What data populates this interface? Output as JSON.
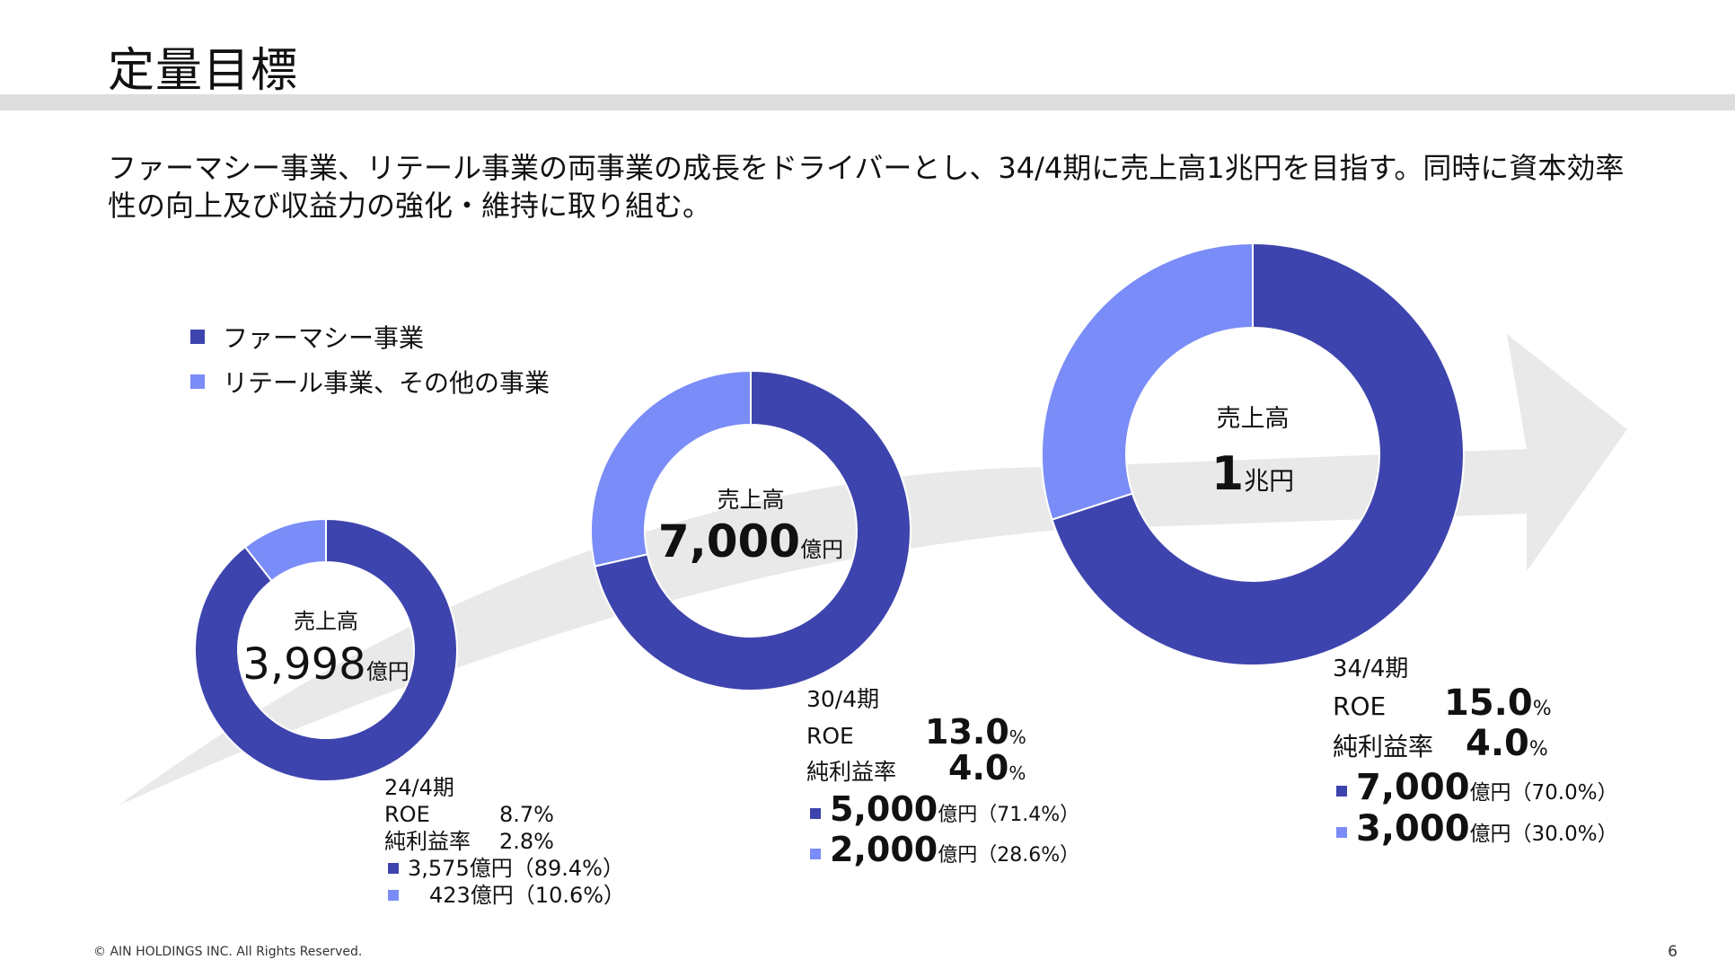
{
  "slide": {
    "title": "定量目標",
    "lead": "ファーマシー事業、リテール事業の両事業の成長をドライバーとし、34/4期に売上高1兆円を目指す。同時に資本効率性の向上及び収益力の強化・維持に取り組む。",
    "footer": "© AIN HOLDINGS INC. All Rights Reserved.",
    "page_number": "6"
  },
  "colors": {
    "pharmacy": "#3e44ad",
    "retail": "#7a8cf7",
    "arrow": "#e9e9e9",
    "title_bar": "#dedede"
  },
  "legend": [
    {
      "label": "ファーマシー事業",
      "color": "#3e44ad"
    },
    {
      "label": "リテール事業、その他の事業",
      "color": "#7a8cf7"
    }
  ],
  "chart_data": {
    "type": "pie",
    "variant": "donut",
    "series_names": [
      "ファーマシー事業",
      "リテール事業、その他の事業"
    ],
    "charts": [
      {
        "period": "24/4期",
        "center_label": "売上高",
        "total_value": "3,998",
        "total_unit": "億円",
        "slices": [
          {
            "name": "ファーマシー事業",
            "value": 3575,
            "share": 89.4
          },
          {
            "name": "リテール事業、その他の事業",
            "value": 423,
            "share": 10.6
          }
        ]
      },
      {
        "period": "30/4期",
        "center_label": "売上高",
        "total_value": "7,000",
        "total_unit": "億円",
        "slices": [
          {
            "name": "ファーマシー事業",
            "value": 5000,
            "share": 71.4
          },
          {
            "name": "リテール事業、その他の事業",
            "value": 2000,
            "share": 28.6
          }
        ]
      },
      {
        "period": "34/4期",
        "center_label": "売上高",
        "total_value": "1",
        "total_unit": "兆円",
        "slices": [
          {
            "name": "ファーマシー事業",
            "value": 7000,
            "share": 70.0
          },
          {
            "name": "リテール事業、その他の事業",
            "value": 3000,
            "share": 30.0
          }
        ]
      }
    ]
  },
  "details": {
    "fy24": {
      "period": "24/4期",
      "roe_label": "ROE",
      "roe_value": "8.7%",
      "margin_label": "純利益率",
      "margin_value": "2.8%",
      "pharmacy_line": "3,575億円（89.4%）",
      "retail_line": "　423億円（10.6%）"
    },
    "fy30": {
      "period": "30/4期",
      "roe_label": "ROE",
      "roe_value": "13.0",
      "margin_label": "純利益率",
      "margin_value": "4.0",
      "percent": "%",
      "pharmacy_value": "5,000",
      "pharmacy_share": "億円（71.4%）",
      "retail_value": "2,000",
      "retail_share": "億円（28.6%）"
    },
    "fy34": {
      "period": "34/4期",
      "roe_label": "ROE",
      "roe_value": "15.0",
      "margin_label": "純利益率",
      "margin_value": "4.0",
      "percent": "%",
      "pharmacy_value": "7,000",
      "pharmacy_share": "億円（70.0%）",
      "retail_value": "3,000",
      "retail_share": "億円（30.0%）"
    }
  }
}
